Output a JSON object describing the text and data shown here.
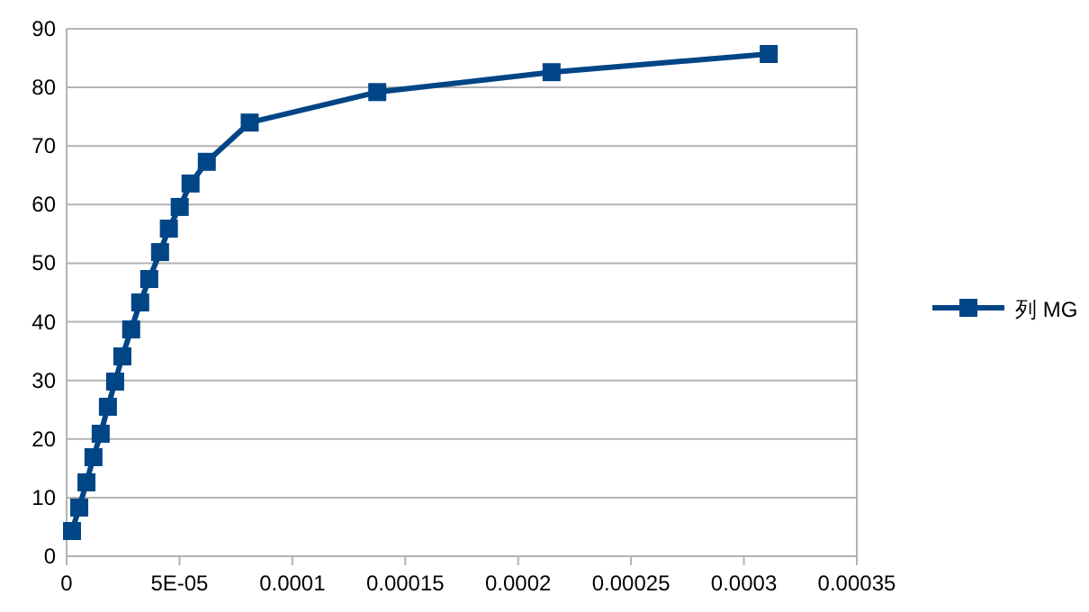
{
  "chart_data": {
    "type": "line",
    "marker": "square",
    "grid": "y",
    "legend": "right",
    "xlim": [
      0,
      0.00035
    ],
    "xticks": [
      0,
      {
        "value": 5e-05,
        "label": "5E-05"
      },
      0.0001,
      0.00015,
      0.0002,
      0.00025,
      0.0003,
      0.00035
    ],
    "ylim": [
      0,
      90
    ],
    "yticks": [
      0,
      10,
      20,
      30,
      40,
      50,
      60,
      70,
      80,
      90
    ],
    "series": [
      {
        "name": "列 MG",
        "color": "#004586",
        "x": [
          2.4e-06,
          5.6e-06,
          8.8e-06,
          1.19e-05,
          1.51e-05,
          1.83e-05,
          2.15e-05,
          2.47e-05,
          2.86e-05,
          3.26e-05,
          3.66e-05,
          4.14e-05,
          4.53e-05,
          5.01e-05,
          5.49e-05,
          6.21e-05,
          8.11e-05,
          0.0001376,
          0.0002148,
          0.000311
        ],
        "values": [
          4.3,
          8.3,
          12.6,
          16.9,
          20.9,
          25.5,
          29.8,
          34.1,
          38.7,
          43.3,
          47.3,
          51.9,
          55.9,
          59.6,
          63.6,
          67.3,
          74.0,
          79.2,
          82.6,
          85.7
        ]
      }
    ]
  }
}
